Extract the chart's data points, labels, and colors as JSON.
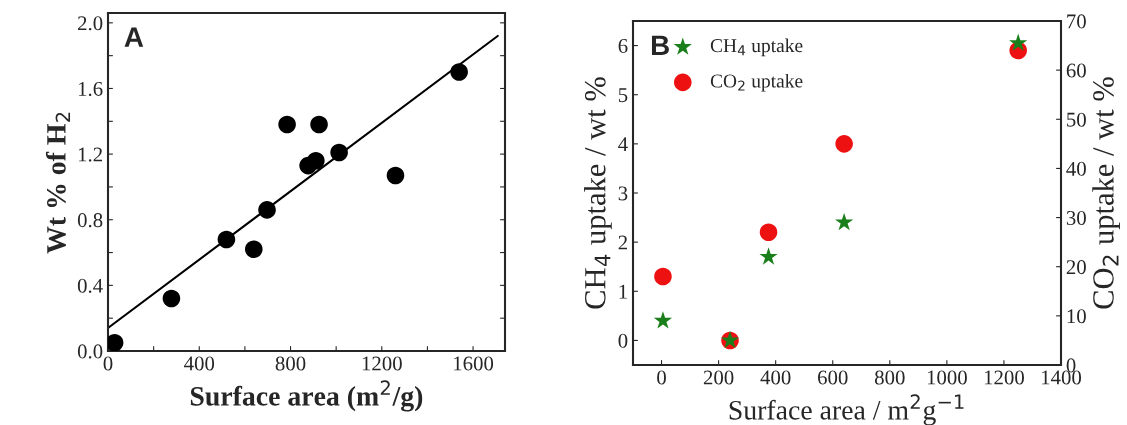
{
  "chart_data": [
    {
      "type": "scatter",
      "xlabel": "Surface area (m$^{2}$/g)",
      "ylabel": "Wt % of H$_{2}$",
      "annotations": [
        "A"
      ],
      "xlim": [
        0,
        1740
      ],
      "ylim": [
        0,
        2.06
      ],
      "xticks": [
        0,
        {
          "value": 200,
          "label": null
        },
        400,
        {
          "value": 600,
          "label": null
        },
        800,
        {
          "value": 1000,
          "label": null
        },
        1200,
        {
          "value": 1400,
          "label": null
        },
        1600
      ],
      "yticks": [
        {
          "value": 0,
          "label": "0.0"
        },
        {
          "value": 0.2,
          "label": null
        },
        0.4,
        {
          "value": 0.6,
          "label": null
        },
        0.8,
        {
          "value": 1.0,
          "label": null
        },
        1.2,
        {
          "value": 1.4,
          "label": null
        },
        1.6,
        {
          "value": 1.8,
          "label": null
        },
        {
          "value": 2.0,
          "label": "2.0"
        }
      ],
      "grid": false,
      "legend": false,
      "series": [
        {
          "marker": "circle",
          "color": "#000000",
          "x": [
            29,
            278,
            519,
            639,
            697,
            785,
            877,
            911,
            925,
            1013,
            1260,
            1539
          ],
          "values": [
            0.05,
            0.32,
            0.68,
            0.62,
            0.86,
            1.38,
            1.13,
            1.16,
            1.38,
            1.21,
            1.07,
            1.7
          ]
        },
        {
          "type": "line",
          "marker": "none",
          "color": "#000000",
          "line_style": "solid",
          "x": [
            0,
            1708
          ],
          "values": [
            0.14,
            1.92
          ]
        }
      ]
    },
    {
      "type": "scatter",
      "xlabel": "Surface area / m$^{2}$g$^{−1}$",
      "ylabel": "CH$_{4}$ uptake / wt %",
      "y2label": "CO$_{2}$ uptake / wt %",
      "annotations": [
        "B"
      ],
      "xlim": [
        -100,
        1400
      ],
      "ylim": [
        -0.5,
        6.5
      ],
      "y2lim": [
        0,
        70
      ],
      "xticks": [
        0,
        200,
        400,
        600,
        800,
        1000,
        1200,
        1400
      ],
      "yticks": [
        0,
        1,
        2,
        3,
        4,
        5,
        6
      ],
      "y2ticks": [
        0,
        10,
        20,
        30,
        40,
        50,
        60,
        70
      ],
      "grid": false,
      "legend": "top left",
      "series": [
        {
          "name": "CH$_{4}$ uptake",
          "marker": "star",
          "color": "#1a7f1a",
          "x": [
            5,
            240,
            375,
            640,
            1250
          ],
          "values": [
            0.4,
            0,
            1.7,
            2.4,
            6.05
          ]
        },
        {
          "name": "CO$_{2}$ uptake",
          "marker": "circle",
          "color": "#ee1111",
          "axis": "y2",
          "x": [
            5,
            240,
            375,
            640,
            1250
          ],
          "values": [
            18,
            5,
            27,
            45,
            64
          ]
        }
      ]
    }
  ]
}
